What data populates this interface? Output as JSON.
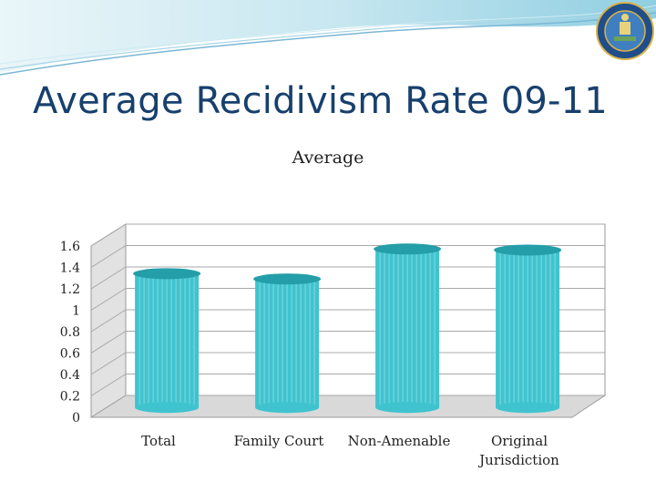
{
  "slide": {
    "title": "Average Recidivism Rate 09-11"
  },
  "colors": {
    "title": "#17406d",
    "bar": "#3fc4cf",
    "bar_top": "#249ea8",
    "banner": "#bfe3ee"
  },
  "chart_data": {
    "type": "bar",
    "title": "Average",
    "categories": [
      "Total",
      "Family Court",
      "Non-Amenable",
      "Original Jurisdiction"
    ],
    "series": [
      {
        "values": [
          1.25,
          1.2,
          1.48,
          1.47
        ]
      }
    ],
    "ylim": [
      0,
      1.6
    ],
    "yticks": [
      "0",
      "0.2",
      "0.4",
      "0.6",
      "0.8",
      "1",
      "1.2",
      "1.4",
      "1.6"
    ],
    "grid": true,
    "legend": "none",
    "style": "3d-cylinder"
  }
}
